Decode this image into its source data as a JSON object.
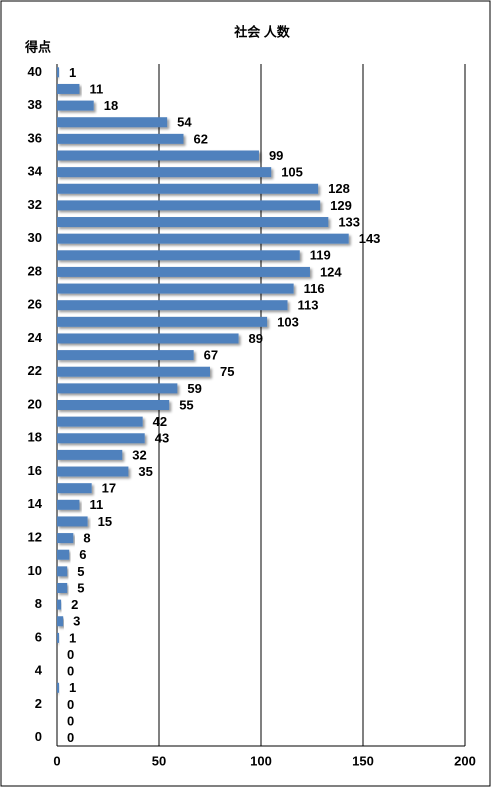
{
  "chart_data": {
    "type": "barh",
    "title": "社会 人数",
    "ylabel": "得点",
    "categories": [
      "40",
      null,
      "38",
      null,
      "36",
      null,
      "34",
      null,
      "32",
      null,
      "30",
      null,
      "28",
      null,
      "26",
      null,
      "24",
      null,
      "22",
      null,
      "20",
      null,
      "18",
      null,
      "16",
      null,
      "14",
      null,
      "12",
      null,
      "10",
      null,
      "8",
      null,
      "6",
      null,
      "4",
      null,
      "2",
      null,
      "0"
    ],
    "values": [
      1,
      11,
      18,
      54,
      62,
      99,
      105,
      128,
      129,
      133,
      143,
      119,
      124,
      116,
      113,
      103,
      89,
      67,
      75,
      59,
      55,
      42,
      43,
      32,
      35,
      17,
      11,
      15,
      8,
      6,
      5,
      5,
      2,
      3,
      1,
      0,
      0,
      1,
      0,
      0,
      0
    ],
    "color": "#4f81bd",
    "xlim": [
      0,
      200
    ],
    "xticks": [
      0,
      50,
      100,
      150,
      200
    ],
    "grid": true
  }
}
